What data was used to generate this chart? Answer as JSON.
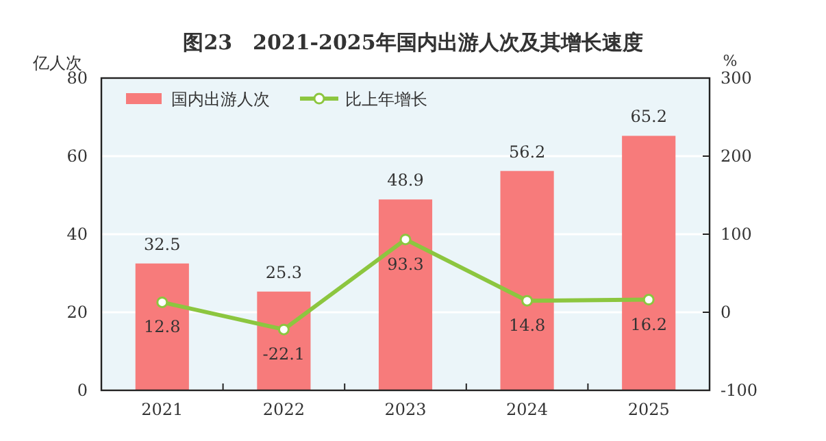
{
  "chart_data": {
    "type": "bar",
    "title": "图23　2021-2025年国内出游人次及其增长速度",
    "ylabel": "亿人次",
    "y2label": "%",
    "categories": [
      "2021",
      "2022",
      "2023",
      "2024",
      "2025"
    ],
    "series": [
      {
        "name": "国内出游人次",
        "color": "#f77b7b",
        "values": [
          32.5,
          25.3,
          48.9,
          56.2,
          65.2
        ]
      },
      {
        "name": "比上年增长",
        "type": "line",
        "axis": "y2",
        "color": "#8cc63f",
        "marker": "circle",
        "values": [
          12.8,
          -22.1,
          93.3,
          14.8,
          16.2
        ]
      }
    ],
    "ylim": [
      0,
      80
    ],
    "yticks": [
      0,
      20,
      40,
      60,
      80
    ],
    "y2lim": [
      -100,
      300
    ],
    "y2ticks": [
      -100,
      0,
      100,
      200,
      300
    ],
    "data_labels": true,
    "legend": "top left",
    "grid": "y"
  }
}
